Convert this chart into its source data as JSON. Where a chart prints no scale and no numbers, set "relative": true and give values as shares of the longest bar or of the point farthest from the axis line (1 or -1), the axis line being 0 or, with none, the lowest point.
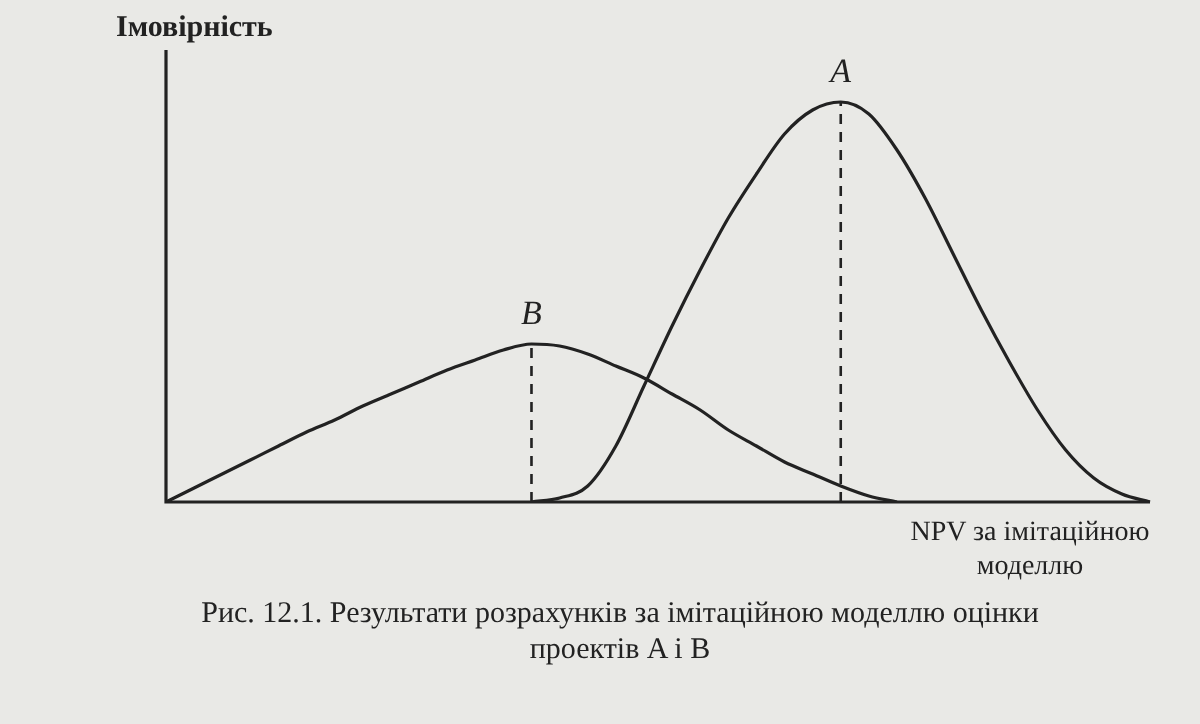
{
  "chart_data": {
    "type": "line",
    "relative": true,
    "ylabel": "Імовірність",
    "xlabel": "NPV за імітаційною моделлю",
    "annotations": [
      "Рис. 12.1. Результати розрахунків за імітаційною моделлю оцінки проектів A і B"
    ],
    "categories": [
      null,
      null,
      null,
      null,
      null,
      null,
      null,
      null,
      null,
      null,
      null,
      null,
      null,
      null,
      null,
      null,
      null,
      null,
      null,
      null,
      null,
      null,
      null,
      null,
      null,
      null,
      null,
      null,
      null,
      null,
      null,
      null,
      null,
      null,
      null,
      null
    ],
    "series": [
      {
        "name": "A",
        "color": "#222222",
        "values": [
          null,
          null,
          null,
          null,
          null,
          null,
          null,
          null,
          null,
          null,
          null,
          null,
          null,
          0,
          0.01,
          0.04,
          0.14,
          0.29,
          0.44,
          0.58,
          0.71,
          0.82,
          0.92,
          0.98,
          1,
          0.97,
          0.88,
          0.76,
          0.62,
          0.48,
          0.35,
          0.23,
          0.13,
          0.06,
          0.02,
          0
        ]
      },
      {
        "name": "B",
        "color": "#222222",
        "values": [
          0,
          0.035,
          0.07,
          0.105,
          0.14,
          0.175,
          0.205,
          0.24,
          0.27,
          0.3,
          0.33,
          0.355,
          0.38,
          0.395,
          0.39,
          0.37,
          0.34,
          0.31,
          0.27,
          0.23,
          0.18,
          0.14,
          0.1,
          0.07,
          0.04,
          0.015,
          0,
          null,
          null,
          null,
          null,
          null,
          null,
          null,
          null,
          null
        ]
      }
    ],
    "legend": false,
    "marker": "none",
    "line_style": "solid"
  }
}
